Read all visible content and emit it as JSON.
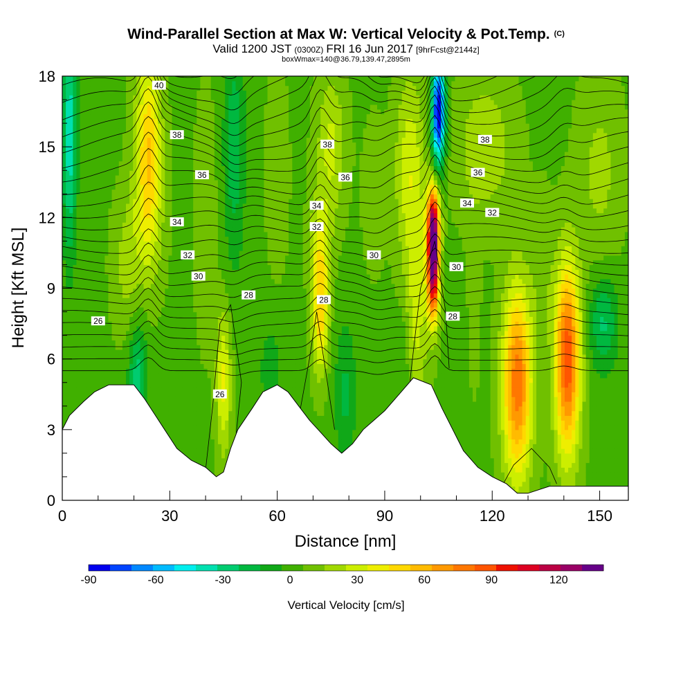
{
  "chart_data": {
    "type": "heatmap",
    "title": "Wind-Parallel Section at Max W: Vertical Velocity & Pot.Temp.",
    "title_mark": "(C)",
    "subtitle_parts": [
      "Valid 1200 JST",
      "(0300Z)",
      "FRI 16 Jun 2017",
      "[9hrFcst@2144z]"
    ],
    "subtitle2": "boxWmax=140@36.79,139.47,2895m",
    "xlabel": "Distance [nm]",
    "ylabel": "Height [Kft MSL]",
    "xlim": [
      0,
      158
    ],
    "ylim": [
      0,
      18
    ],
    "xticks": [
      "0",
      "30",
      "60",
      "90",
      "120",
      "150"
    ],
    "yticks": [
      "0",
      "3",
      "6",
      "9",
      "12",
      "15",
      "18"
    ],
    "colorbar": {
      "label": "Vertical Velocity [cm/s]",
      "min": -90,
      "max": 140,
      "step": 10,
      "tick_labels": [
        "-90",
        "-60",
        "-30",
        "0",
        "30",
        "60",
        "90",
        "120"
      ],
      "colors": [
        "#0000ee",
        "#0044ff",
        "#0088ff",
        "#00bbff",
        "#00eeee",
        "#00e0b0",
        "#00cc70",
        "#00b840",
        "#10a818",
        "#40b000",
        "#70c000",
        "#a0d800",
        "#ccee00",
        "#eeee00",
        "#ffd800",
        "#ffbb00",
        "#ff9900",
        "#ff7700",
        "#ff5500",
        "#ee1100",
        "#dd0022",
        "#bb0044",
        "#990066",
        "#660088"
      ]
    },
    "terrain_kft": [
      [
        0,
        3.0
      ],
      [
        2,
        3.6
      ],
      [
        6,
        4.2
      ],
      [
        9,
        4.6
      ],
      [
        13,
        4.9
      ],
      [
        20,
        4.9
      ],
      [
        23,
        4.3
      ],
      [
        26,
        3.6
      ],
      [
        29,
        2.9
      ],
      [
        32,
        2.2
      ],
      [
        36,
        1.7
      ],
      [
        40,
        1.4
      ],
      [
        43,
        1.0
      ],
      [
        45,
        1.2
      ],
      [
        47,
        2.2
      ],
      [
        49,
        3.0
      ],
      [
        53,
        3.9
      ],
      [
        56,
        4.6
      ],
      [
        60,
        4.9
      ],
      [
        63,
        4.6
      ],
      [
        66,
        4.0
      ],
      [
        69,
        3.4
      ],
      [
        72,
        2.9
      ],
      [
        75,
        2.4
      ],
      [
        78,
        2.0
      ],
      [
        81,
        2.4
      ],
      [
        84,
        3.0
      ],
      [
        87,
        3.4
      ],
      [
        90,
        3.8
      ],
      [
        94,
        4.5
      ],
      [
        98,
        5.2
      ],
      [
        103,
        4.9
      ],
      [
        106,
        3.9
      ],
      [
        109,
        3.0
      ],
      [
        112,
        2.1
      ],
      [
        116,
        1.4
      ],
      [
        120,
        1.0
      ],
      [
        124,
        0.7
      ],
      [
        127,
        0.3
      ],
      [
        130,
        0.3
      ],
      [
        136,
        0.6
      ],
      [
        142,
        0.6
      ],
      [
        150,
        0.6
      ],
      [
        158,
        0.6
      ]
    ],
    "theta_contours": [
      {
        "label": "26",
        "label_x": 10,
        "label_y": 7.6
      },
      {
        "label": "28",
        "label_x": 52,
        "label_y": 8.7
      },
      {
        "label": "28",
        "label_x": 73,
        "label_y": 8.5
      },
      {
        "label": "28",
        "label_x": 109,
        "label_y": 7.8
      },
      {
        "label": "26",
        "label_x": 44,
        "label_y": 4.5
      },
      {
        "label": "30",
        "label_x": 38,
        "label_y": 9.5
      },
      {
        "label": "30",
        "label_x": 87,
        "label_y": 10.4
      },
      {
        "label": "30",
        "label_x": 110,
        "label_y": 9.9
      },
      {
        "label": "32",
        "label_x": 35,
        "label_y": 10.4
      },
      {
        "label": "32",
        "label_x": 71,
        "label_y": 11.6
      },
      {
        "label": "32",
        "label_x": 120,
        "label_y": 12.2
      },
      {
        "label": "34",
        "label_x": 32,
        "label_y": 11.8
      },
      {
        "label": "34",
        "label_x": 71,
        "label_y": 12.5
      },
      {
        "label": "34",
        "label_x": 113,
        "label_y": 12.6
      },
      {
        "label": "36",
        "label_x": 39,
        "label_y": 13.8
      },
      {
        "label": "36",
        "label_x": 79,
        "label_y": 13.7
      },
      {
        "label": "36",
        "label_x": 116,
        "label_y": 13.9
      },
      {
        "label": "38",
        "label_x": 32,
        "label_y": 15.5
      },
      {
        "label": "38",
        "label_x": 74,
        "label_y": 15.1
      },
      {
        "label": "38",
        "label_x": 118,
        "label_y": 15.3
      },
      {
        "label": "40",
        "label_x": 27,
        "label_y": 17.6
      }
    ]
  }
}
